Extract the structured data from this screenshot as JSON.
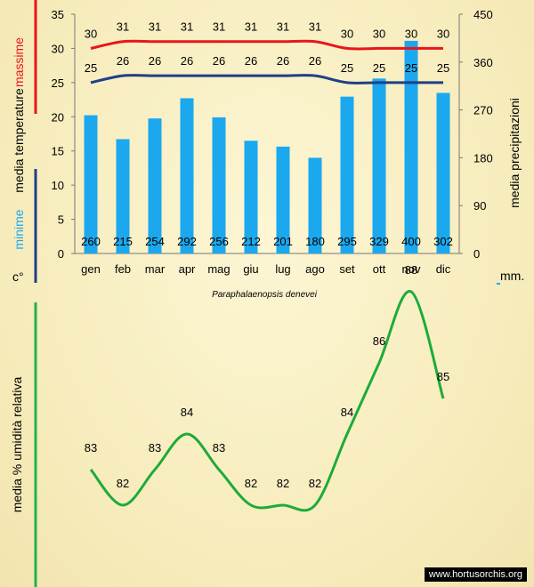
{
  "chart_data": [
    {
      "type": "bar+line",
      "title": "Paraphalaenopsis denevei",
      "categories": [
        "gen",
        "feb",
        "mar",
        "apr",
        "mag",
        "giu",
        "lug",
        "ago",
        "set",
        "ott",
        "nov",
        "dic"
      ],
      "left_axis": {
        "ylim": [
          0,
          35
        ],
        "ticks": [
          "0",
          "5",
          "10",
          "15",
          "20",
          "25",
          "30",
          "35"
        ]
      },
      "right_axis": {
        "ylim": [
          0,
          450
        ],
        "ticks": [
          "0",
          "90",
          "180",
          "270",
          "360",
          "450"
        ]
      },
      "series": [
        {
          "name": "massime",
          "axis": "left",
          "kind": "line",
          "color": "#e8161b",
          "values": [
            30,
            31,
            31,
            31,
            31,
            31,
            31,
            31,
            30,
            30,
            30,
            30
          ]
        },
        {
          "name": "minime",
          "axis": "left",
          "kind": "line",
          "color": "#1f3f86",
          "values": [
            25,
            26,
            26,
            26,
            26,
            26,
            26,
            26,
            25,
            25,
            25,
            25
          ]
        },
        {
          "name": "precipitazioni",
          "axis": "right",
          "kind": "bar",
          "color": "#1ba8ee",
          "values": [
            260,
            215,
            254,
            292,
            256,
            212,
            201,
            180,
            295,
            329,
            400,
            302
          ]
        }
      ],
      "left_label": {
        "massime": "massime",
        "media_temperature": "media  temperature",
        "minime": "minime",
        "unit": "c°"
      },
      "right_label": {
        "text": "media  precipitazioni",
        "unit": "mm."
      }
    },
    {
      "type": "line",
      "categories": [
        "gen",
        "feb",
        "mar",
        "apr",
        "mag",
        "giu",
        "lug",
        "ago",
        "set",
        "ott",
        "nov",
        "dic"
      ],
      "series": [
        {
          "name": "umidità relativa",
          "color": "#1dab3a",
          "values": [
            83,
            82,
            83,
            84,
            83,
            82,
            82,
            82,
            84,
            86,
            88,
            85
          ]
        }
      ],
      "ylabel": "media %  umidità relativa"
    }
  ],
  "colors": {
    "massime": "#e8161b",
    "minime": "#1f3f86",
    "bars": "#1ba8ee",
    "humidity": "#1dab3a",
    "separator_green": "#22b24c"
  },
  "watermark": "www.hortusorchis.org"
}
